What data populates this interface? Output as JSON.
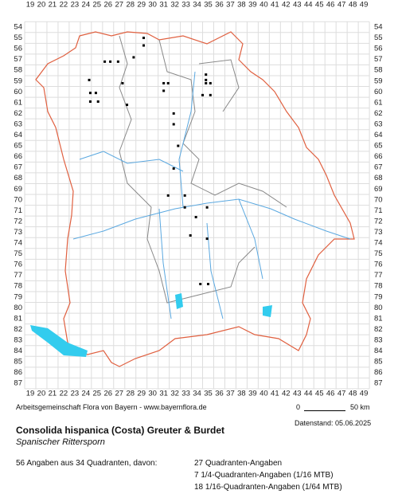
{
  "grid": {
    "columns": [
      19,
      20,
      21,
      22,
      23,
      24,
      25,
      26,
      27,
      28,
      29,
      30,
      31,
      32,
      33,
      34,
      35,
      36,
      37,
      38,
      39,
      40,
      41,
      42,
      43,
      44,
      45,
      46,
      47,
      48,
      49
    ],
    "rows": [
      54,
      55,
      56,
      57,
      58,
      59,
      60,
      61,
      62,
      63,
      64,
      65,
      66,
      67,
      68,
      69,
      70,
      71,
      72,
      73,
      74,
      75,
      76,
      77,
      78,
      79,
      80,
      81,
      82,
      83,
      84,
      85,
      86,
      87
    ]
  },
  "points": [
    {
      "x": 29.2,
      "y": 55.0
    },
    {
      "x": 29.2,
      "y": 55.7
    },
    {
      "x": 28.3,
      "y": 56.8
    },
    {
      "x": 25.7,
      "y": 57.2
    },
    {
      "x": 26.2,
      "y": 57.2
    },
    {
      "x": 26.9,
      "y": 57.2
    },
    {
      "x": 24.3,
      "y": 58.9
    },
    {
      "x": 27.3,
      "y": 59.2
    },
    {
      "x": 31.0,
      "y": 59.2
    },
    {
      "x": 31.4,
      "y": 59.2
    },
    {
      "x": 31.0,
      "y": 59.9
    },
    {
      "x": 24.4,
      "y": 60.1
    },
    {
      "x": 24.9,
      "y": 60.1
    },
    {
      "x": 24.4,
      "y": 60.9
    },
    {
      "x": 25.1,
      "y": 60.9
    },
    {
      "x": 27.7,
      "y": 61.2
    },
    {
      "x": 34.8,
      "y": 58.4
    },
    {
      "x": 34.8,
      "y": 58.9
    },
    {
      "x": 35.2,
      "y": 59.2
    },
    {
      "x": 34.8,
      "y": 59.2
    },
    {
      "x": 34.5,
      "y": 60.3
    },
    {
      "x": 35.2,
      "y": 60.3
    },
    {
      "x": 31.9,
      "y": 62.0
    },
    {
      "x": 31.9,
      "y": 63.0
    },
    {
      "x": 32.3,
      "y": 65.0
    },
    {
      "x": 31.9,
      "y": 67.1
    },
    {
      "x": 31.4,
      "y": 69.6
    },
    {
      "x": 32.9,
      "y": 69.6
    },
    {
      "x": 32.9,
      "y": 70.7
    },
    {
      "x": 34.9,
      "y": 70.7
    },
    {
      "x": 33.9,
      "y": 71.6
    },
    {
      "x": 33.4,
      "y": 73.3
    },
    {
      "x": 34.9,
      "y": 73.6
    },
    {
      "x": 34.3,
      "y": 77.8
    },
    {
      "x": 35.0,
      "y": 77.8
    }
  ],
  "credit": "Arbeitsgemeinschaft Flora von Bayern - www.bayernflora.de",
  "scale": {
    "start": "0",
    "end": "50 km"
  },
  "date": "Datenstand: 05.06.2025",
  "title": "Consolida hispanica (Costa) Greuter & Burdet",
  "subtitle": "Spanischer Rittersporn",
  "summary": "56 Angaben aus 34 Quadranten, davon:",
  "details": [
    "27 Quadranten-Angaben",
    "7 1/4-Quadranten-Angaben (1/16 MTB)",
    "18 1/16-Quadranten-Angaben (1/64 MTB)"
  ]
}
